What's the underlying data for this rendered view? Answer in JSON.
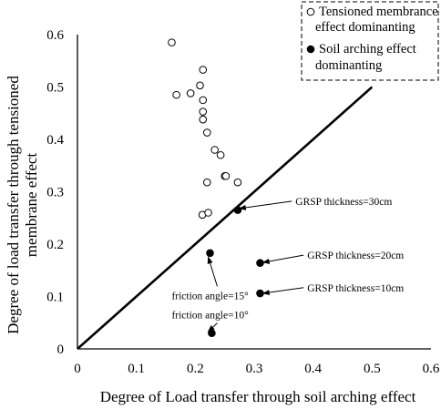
{
  "chart_data": {
    "type": "scatter",
    "xlabel": "Degree of Load transfer through soil arching effect",
    "ylabel": [
      "Degree of load transfer through tensioned",
      "membrane  effect"
    ],
    "xlim": [
      0,
      0.6
    ],
    "ylim": [
      0,
      0.6
    ],
    "xticks": [
      "0",
      "0.1",
      "0.2",
      "0.3",
      "0.4",
      "0.5",
      "0.6"
    ],
    "yticks": [
      "0",
      "0.1",
      "0.2",
      "0.3",
      "0.4",
      "0.5",
      "0.6"
    ],
    "grid": false,
    "legend_position": "top-right",
    "series": [
      {
        "name": [
          "Tensioned membrance",
          "effect dominanting"
        ],
        "marker": "open-circle",
        "points": [
          [
            0.16,
            0.585
          ],
          [
            0.168,
            0.485
          ],
          [
            0.192,
            0.488
          ],
          [
            0.208,
            0.503
          ],
          [
            0.213,
            0.533
          ],
          [
            0.213,
            0.475
          ],
          [
            0.213,
            0.453
          ],
          [
            0.213,
            0.438
          ],
          [
            0.22,
            0.413
          ],
          [
            0.233,
            0.38
          ],
          [
            0.243,
            0.37
          ],
          [
            0.25,
            0.33
          ],
          [
            0.252,
            0.33
          ],
          [
            0.22,
            0.318
          ],
          [
            0.272,
            0.318
          ],
          [
            0.212,
            0.256
          ],
          [
            0.222,
            0.26
          ]
        ]
      },
      {
        "name": [
          "Soil arching effect",
          "dominanting"
        ],
        "marker": "filled-circle",
        "points": [
          [
            0.272,
            0.265
          ],
          [
            0.225,
            0.183
          ],
          [
            0.31,
            0.164
          ],
          [
            0.31,
            0.106
          ],
          [
            0.228,
            0.03
          ]
        ]
      }
    ],
    "reference_line": {
      "from": [
        0,
        0
      ],
      "to": [
        0.5,
        0.5
      ]
    },
    "annotations": [
      {
        "text": "GRSP thickness=30cm",
        "text_at": [
          0.37,
          0.275
        ],
        "target": [
          0.275,
          0.268
        ]
      },
      {
        "text": "GRSP thickness=20cm",
        "text_at": [
          0.39,
          0.172
        ],
        "target": [
          0.315,
          0.165
        ]
      },
      {
        "text": "GRSP thickness=10cm",
        "text_at": [
          0.39,
          0.11
        ],
        "target": [
          0.315,
          0.106
        ]
      },
      {
        "text": "friction angle=15°",
        "text_at": [
          0.16,
          0.095
        ],
        "target": [
          0.222,
          0.175
        ]
      },
      {
        "text": "friction angle=10°",
        "text_at": [
          0.16,
          0.058
        ],
        "target": [
          0.222,
          0.033
        ]
      }
    ]
  }
}
